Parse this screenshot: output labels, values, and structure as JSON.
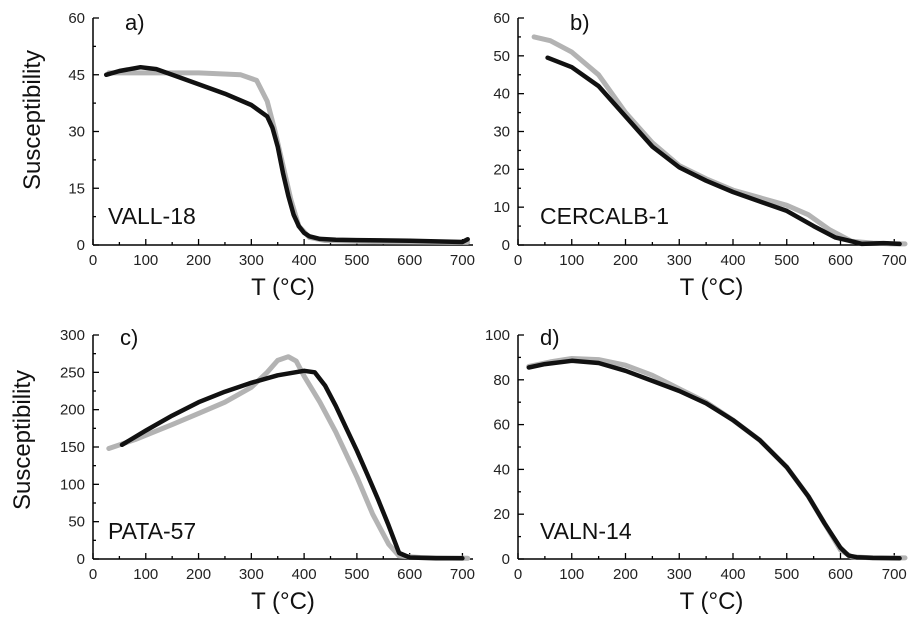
{
  "chart_data": [
    {
      "type": "line",
      "panel_label": "a)",
      "sample": "VALL-18",
      "xlabel": "T (°C)",
      "ylabel": "Susceptibility",
      "xlim": [
        0,
        720
      ],
      "ylim": [
        0,
        60
      ],
      "xticks": [
        0,
        100,
        200,
        300,
        400,
        500,
        600,
        700
      ],
      "yticks": [
        0,
        15,
        30,
        45,
        60
      ],
      "series": [
        {
          "color": "#b3b3b3",
          "x": [
            30,
            100,
            200,
            280,
            310,
            330,
            345,
            360,
            375,
            390,
            410,
            440,
            500,
            600,
            700,
            710
          ],
          "y": [
            45.5,
            45.5,
            45.5,
            45,
            43.5,
            38,
            30,
            21,
            12,
            5,
            2,
            1.2,
            1,
            0.8,
            0.7,
            0.7
          ]
        },
        {
          "color": "#111111",
          "x": [
            25,
            50,
            90,
            120,
            150,
            200,
            250,
            300,
            330,
            340,
            350,
            360,
            370,
            380,
            390,
            400,
            410,
            430,
            460,
            500,
            600,
            700,
            710
          ],
          "y": [
            45,
            46,
            47,
            46.5,
            45,
            42.5,
            40,
            37,
            34,
            31,
            26,
            19,
            13,
            8,
            5,
            3.2,
            2.3,
            1.6,
            1.4,
            1.3,
            1.1,
            0.8,
            1.5
          ]
        }
      ]
    },
    {
      "type": "line",
      "panel_label": "b)",
      "sample": "CERCALB-1",
      "xlabel": "T (°C)",
      "ylabel": "",
      "xlim": [
        0,
        720
      ],
      "ylim": [
        0,
        60
      ],
      "xticks": [
        0,
        100,
        200,
        300,
        400,
        500,
        600,
        700
      ],
      "yticks": [
        0,
        10,
        20,
        30,
        40,
        50,
        60
      ],
      "series": [
        {
          "color": "#b3b3b3",
          "x": [
            30,
            60,
            100,
            150,
            200,
            250,
            300,
            350,
            400,
            450,
            500,
            540,
            580,
            620,
            660,
            700,
            720
          ],
          "y": [
            55,
            54,
            51,
            45,
            35,
            27,
            21,
            17.5,
            14.5,
            12.5,
            10.5,
            8,
            4,
            1,
            0.5,
            0.3,
            0.3
          ]
        },
        {
          "color": "#111111",
          "x": [
            55,
            100,
            150,
            200,
            250,
            300,
            350,
            400,
            450,
            500,
            550,
            590,
            620,
            640,
            680,
            710
          ],
          "y": [
            49.5,
            47,
            42,
            34,
            26,
            20.5,
            17,
            14,
            11.5,
            9,
            5,
            2,
            1,
            0.3,
            0.5,
            0.3
          ]
        }
      ]
    },
    {
      "type": "line",
      "panel_label": "c)",
      "sample": "PATA-57",
      "xlabel": "T (°C)",
      "ylabel": "Susceptibility",
      "xlim": [
        0,
        720
      ],
      "ylim": [
        0,
        300
      ],
      "xticks": [
        0,
        100,
        200,
        300,
        400,
        500,
        600,
        700
      ],
      "yticks": [
        0,
        50,
        100,
        150,
        200,
        250,
        300
      ],
      "series": [
        {
          "color": "#b3b3b3",
          "x": [
            30,
            80,
            150,
            200,
            250,
            300,
            330,
            350,
            370,
            385,
            400,
            430,
            460,
            500,
            530,
            560,
            580,
            620,
            710
          ],
          "y": [
            148,
            160,
            180,
            195,
            210,
            230,
            250,
            266,
            271,
            265,
            245,
            210,
            170,
            110,
            60,
            20,
            4,
            2,
            1
          ]
        },
        {
          "color": "#111111",
          "x": [
            55,
            100,
            150,
            200,
            250,
            300,
            350,
            400,
            420,
            440,
            460,
            480,
            500,
            520,
            540,
            560,
            580,
            600,
            650,
            700
          ],
          "y": [
            153,
            172,
            192,
            210,
            224,
            236,
            246,
            252,
            250,
            232,
            205,
            175,
            145,
            113,
            80,
            45,
            8,
            2,
            1,
            1
          ]
        }
      ]
    },
    {
      "type": "line",
      "panel_label": "d)",
      "sample": "VALN-14",
      "xlabel": "T (°C)",
      "ylabel": "",
      "xlim": [
        0,
        720
      ],
      "ylim": [
        0,
        100
      ],
      "xticks": [
        0,
        100,
        200,
        300,
        400,
        500,
        600,
        700
      ],
      "yticks": [
        0,
        20,
        40,
        60,
        80,
        100
      ],
      "series": [
        {
          "color": "#b3b3b3",
          "x": [
            20,
            60,
            100,
            150,
            200,
            250,
            300,
            350,
            400,
            450,
            500,
            540,
            570,
            600,
            620,
            660,
            720
          ],
          "y": [
            86,
            88,
            89.5,
            89,
            86.5,
            82,
            76,
            70,
            62,
            53,
            41,
            28,
            16,
            4,
            1,
            0.5,
            0.5
          ]
        },
        {
          "color": "#111111",
          "x": [
            20,
            50,
            100,
            150,
            200,
            250,
            300,
            350,
            400,
            450,
            500,
            540,
            570,
            600,
            615,
            630,
            660,
            710
          ],
          "y": [
            85.5,
            87,
            88.5,
            87.5,
            84,
            79.5,
            75,
            69.5,
            62,
            53,
            41,
            28,
            16,
            5,
            1.5,
            0.8,
            0.5,
            0.3
          ]
        }
      ]
    }
  ]
}
